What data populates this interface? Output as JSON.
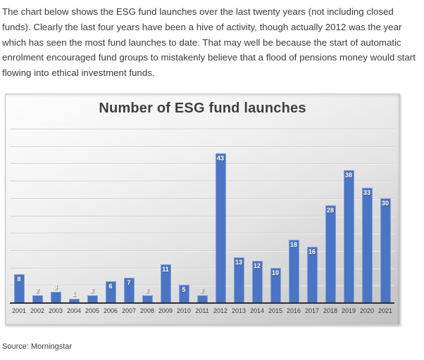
{
  "intro": {
    "text": "The chart below shows the ESG fund launches over the last twenty years (not including closed funds). Clearly the last four years have been a hive of activity, though actually 2012 was the year which has seen the most fund launches to date. That may well be because the start of automatic enrolment encouraged fund groups to mistakenly believe that a flood of pensions money would start flowing into ethical investment funds."
  },
  "chart_data": {
    "type": "bar",
    "title": "Number of ESG fund launches",
    "categories": [
      "2001",
      "2002",
      "2003",
      "2004",
      "2005",
      "2006",
      "2007",
      "2008",
      "2009",
      "2010",
      "2011",
      "2012",
      "2013",
      "2014",
      "2015",
      "2016",
      "2017",
      "2018",
      "2019",
      "2020",
      "2021"
    ],
    "values": [
      8,
      2,
      3,
      1,
      2,
      6,
      7,
      2,
      11,
      5,
      2,
      43,
      13,
      12,
      10,
      18,
      16,
      28,
      38,
      33,
      30
    ],
    "xlabel": "",
    "ylabel": "",
    "ylim": [
      0,
      50
    ],
    "gridline_step": 5,
    "grid": true,
    "legend_position": "none",
    "data_labels": "inside-end-white",
    "colors": {
      "bar_fill": "#4a75c4",
      "bar_border": "#88a0d6",
      "gridline": "#d3d3d3",
      "axis_line": "#303030",
      "title_text": "#3f3f3f",
      "label_text": "#ffffff",
      "tick_text": "#3d3d3d"
    }
  },
  "source": {
    "text": "Source: Morningstar"
  }
}
